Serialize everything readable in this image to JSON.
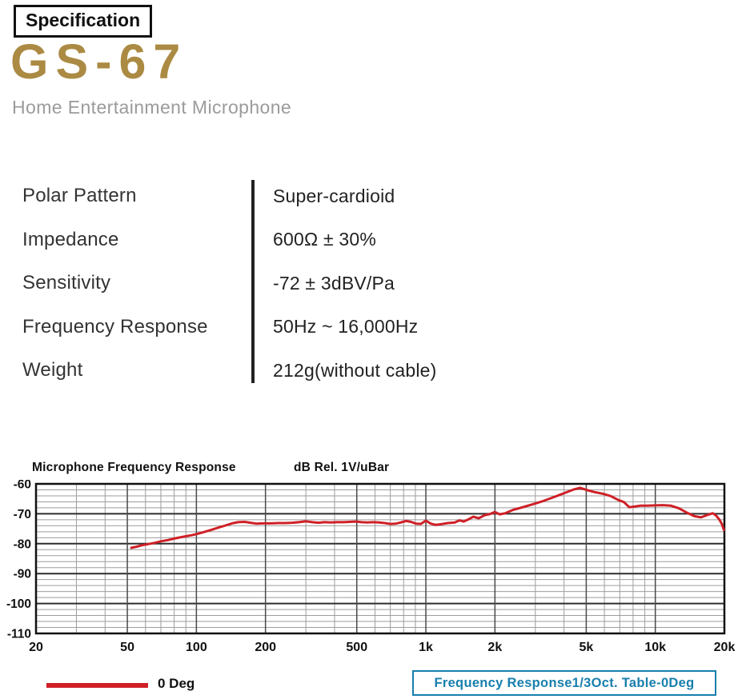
{
  "colors": {
    "brand_gold": "#ab8a43",
    "accent_red": "#cf2027",
    "note_blue": "#187fad",
    "grid_minor": "#9d9d9d",
    "grid_major": "#2e2e2e"
  },
  "header": {
    "badge": "Specification",
    "model": "GS-67",
    "subtitle": "Home Entertainment Microphone"
  },
  "specs": {
    "rows": [
      {
        "label": "Polar Pattern",
        "value": "Super-cardioid"
      },
      {
        "label": "Impedance",
        "value": "600Ω ± 30%"
      },
      {
        "label": "Sensitivity",
        "value": "-72 ± 3dBV/Pa"
      },
      {
        "label": "Frequency Response",
        "value": "50Hz ~ 16,000Hz"
      },
      {
        "label": "Weight",
        "value": "212g(without cable)"
      }
    ]
  },
  "chart_data": {
    "type": "line",
    "title": "Microphone Frequency Response",
    "units_label": "dB Rel. 1V/uBar",
    "footer_note": "Frequency Response1/3Oct. Table-0Deg",
    "grid": true,
    "legend": {
      "position": "bottom-left"
    },
    "x_axis": {
      "scale": "log",
      "min": 20,
      "max": 20000,
      "tick_labels": [
        "20",
        "50",
        "100",
        "200",
        "500",
        "1k",
        "2k",
        "5k",
        "10k",
        "20k"
      ],
      "tick_values": [
        20,
        50,
        100,
        200,
        500,
        1000,
        2000,
        5000,
        10000,
        20000
      ],
      "minor_values": [
        30,
        40,
        60,
        70,
        80,
        90,
        300,
        400,
        600,
        700,
        800,
        900,
        3000,
        4000,
        6000,
        7000,
        8000,
        9000
      ]
    },
    "y_axis": {
      "min": -110,
      "max": -60,
      "major_step": 10,
      "minor_step": 2,
      "tick_labels": [
        "-60",
        "-70",
        "-80",
        "-90",
        "-100",
        "-110"
      ]
    },
    "series": [
      {
        "name": "0 Deg",
        "color": "#cf2027",
        "points": [
          [
            52,
            -81.4
          ],
          [
            55,
            -81.0
          ],
          [
            58,
            -80.5
          ],
          [
            62,
            -80.1
          ],
          [
            66,
            -79.7
          ],
          [
            70,
            -79.2
          ],
          [
            75,
            -78.8
          ],
          [
            80,
            -78.3
          ],
          [
            85,
            -77.9
          ],
          [
            90,
            -77.5
          ],
          [
            95,
            -77.2
          ],
          [
            100,
            -76.8
          ],
          [
            108,
            -76.1
          ],
          [
            116,
            -75.4
          ],
          [
            125,
            -74.6
          ],
          [
            134,
            -73.9
          ],
          [
            143,
            -73.2
          ],
          [
            152,
            -72.8
          ],
          [
            162,
            -72.7
          ],
          [
            172,
            -73.0
          ],
          [
            182,
            -73.3
          ],
          [
            195,
            -73.2
          ],
          [
            212,
            -73.2
          ],
          [
            228,
            -73.1
          ],
          [
            245,
            -73.1
          ],
          [
            262,
            -73.0
          ],
          [
            280,
            -72.8
          ],
          [
            300,
            -72.5
          ],
          [
            320,
            -72.8
          ],
          [
            340,
            -73.0
          ],
          [
            362,
            -72.8
          ],
          [
            385,
            -72.9
          ],
          [
            410,
            -72.8
          ],
          [
            438,
            -72.8
          ],
          [
            465,
            -72.7
          ],
          [
            495,
            -72.6
          ],
          [
            525,
            -72.8
          ],
          [
            555,
            -72.9
          ],
          [
            590,
            -72.8
          ],
          [
            625,
            -72.9
          ],
          [
            662,
            -73.1
          ],
          [
            700,
            -73.4
          ],
          [
            740,
            -73.3
          ],
          [
            780,
            -72.9
          ],
          [
            820,
            -72.4
          ],
          [
            860,
            -72.7
          ],
          [
            905,
            -73.3
          ],
          [
            950,
            -73.4
          ],
          [
            1000,
            -72.3
          ],
          [
            1050,
            -73.3
          ],
          [
            1100,
            -73.7
          ],
          [
            1160,
            -73.5
          ],
          [
            1250,
            -73.1
          ],
          [
            1340,
            -72.9
          ],
          [
            1400,
            -72.2
          ],
          [
            1460,
            -72.6
          ],
          [
            1540,
            -71.8
          ],
          [
            1610,
            -71.0
          ],
          [
            1700,
            -71.5
          ],
          [
            1800,
            -70.5
          ],
          [
            1900,
            -70.1
          ],
          [
            2000,
            -69.4
          ],
          [
            2100,
            -70.2
          ],
          [
            2220,
            -69.8
          ],
          [
            2400,
            -68.7
          ],
          [
            2620,
            -67.9
          ],
          [
            2900,
            -66.9
          ],
          [
            3200,
            -65.9
          ],
          [
            3500,
            -64.8
          ],
          [
            3800,
            -63.8
          ],
          [
            4100,
            -62.8
          ],
          [
            4400,
            -61.9
          ],
          [
            4700,
            -61.3
          ],
          [
            5000,
            -62.0
          ],
          [
            5400,
            -62.7
          ],
          [
            5900,
            -63.3
          ],
          [
            6400,
            -64.1
          ],
          [
            6900,
            -65.4
          ],
          [
            7300,
            -66.1
          ],
          [
            7700,
            -67.8
          ],
          [
            8100,
            -67.6
          ],
          [
            8600,
            -67.3
          ],
          [
            9200,
            -67.3
          ],
          [
            10000,
            -67.2
          ],
          [
            10800,
            -67.1
          ],
          [
            11700,
            -67.3
          ],
          [
            12700,
            -68.2
          ],
          [
            13700,
            -69.6
          ],
          [
            14800,
            -70.8
          ],
          [
            15800,
            -71.2
          ],
          [
            16600,
            -70.6
          ],
          [
            17200,
            -70.2
          ],
          [
            17800,
            -69.8
          ],
          [
            18400,
            -70.6
          ],
          [
            19000,
            -71.9
          ],
          [
            19500,
            -73.4
          ],
          [
            19900,
            -75.4
          ]
        ]
      }
    ]
  }
}
